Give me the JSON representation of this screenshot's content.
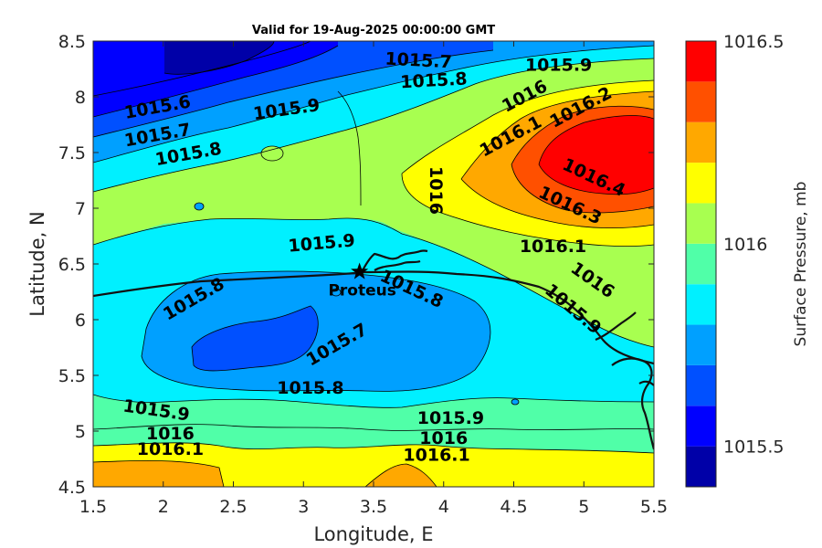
{
  "chart_data": {
    "type": "contour",
    "title": "Valid for 19-Aug-2025 00:00:00 GMT",
    "xlabel": "Longitude, E",
    "ylabel": "Latitude, N",
    "xlim": [
      1.5,
      5.5
    ],
    "ylim": [
      4.5,
      8.5
    ],
    "xticks": [
      "1.5",
      "2",
      "2.5",
      "3",
      "3.5",
      "4",
      "4.5",
      "5",
      "5.5"
    ],
    "yticks": [
      "4.5",
      "5",
      "5.5",
      "6",
      "6.5",
      "7",
      "7.5",
      "8",
      "8.5"
    ],
    "colorbar": {
      "label": "Surface Pressure, mb",
      "range": [
        1015.4,
        1016.5
      ],
      "ticks": [
        "1015.5",
        "1016",
        "1016.5"
      ],
      "levels": [
        1015.4,
        1015.5,
        1015.6,
        1015.7,
        1015.8,
        1015.9,
        1016.0,
        1016.1,
        1016.2,
        1016.3,
        1016.4,
        1016.5
      ],
      "colors": [
        "#0000a8",
        "#0000ff",
        "#0050ff",
        "#00a0ff",
        "#00f0ff",
        "#50ffa8",
        "#a8ff50",
        "#ffff00",
        "#ffa800",
        "#ff5000",
        "#ff0000",
        "#a80000"
      ]
    },
    "station": {
      "name": "Proteus",
      "lon": 3.4,
      "lat": 6.43
    },
    "contour_labels": [
      {
        "text": "1015.7",
        "lon": 3.82,
        "lat": 8.32,
        "rot": 3
      },
      {
        "text": "1015.8",
        "lon": 3.93,
        "lat": 8.14,
        "rot": -3
      },
      {
        "text": "1015.9",
        "lon": 4.82,
        "lat": 8.28,
        "rot": 0
      },
      {
        "text": "1016",
        "lon": 4.58,
        "lat": 8.0,
        "rot": -28
      },
      {
        "text": "1016.2",
        "lon": 4.98,
        "lat": 7.9,
        "rot": -28
      },
      {
        "text": "1016.1",
        "lon": 4.48,
        "lat": 7.64,
        "rot": -28
      },
      {
        "text": "1015.6",
        "lon": 1.96,
        "lat": 7.9,
        "rot": -10
      },
      {
        "text": "1015.7",
        "lon": 1.96,
        "lat": 7.65,
        "rot": -10
      },
      {
        "text": "1015.8",
        "lon": 2.18,
        "lat": 7.48,
        "rot": -10
      },
      {
        "text": "1015.9",
        "lon": 2.88,
        "lat": 7.88,
        "rot": -8
      },
      {
        "text": "1016",
        "lon": 3.94,
        "lat": 7.16,
        "rot": 90
      },
      {
        "text": "1016.4",
        "lon": 5.07,
        "lat": 7.27,
        "rot": 25
      },
      {
        "text": "1016.3",
        "lon": 4.9,
        "lat": 7.02,
        "rot": 25
      },
      {
        "text": "1016.1",
        "lon": 4.78,
        "lat": 6.65,
        "rot": 0
      },
      {
        "text": "1016",
        "lon": 5.06,
        "lat": 6.35,
        "rot": 35
      },
      {
        "text": "1015.9",
        "lon": 4.92,
        "lat": 6.09,
        "rot": 40
      },
      {
        "text": "1015.9",
        "lon": 3.13,
        "lat": 6.68,
        "rot": -5
      },
      {
        "text": "1015.8",
        "lon": 2.22,
        "lat": 6.18,
        "rot": -30
      },
      {
        "text": "1015.8",
        "lon": 3.77,
        "lat": 6.27,
        "rot": 25
      },
      {
        "text": "1015.7",
        "lon": 3.24,
        "lat": 5.77,
        "rot": -30
      },
      {
        "text": "1015.8",
        "lon": 3.05,
        "lat": 5.38,
        "rot": 0
      },
      {
        "text": "1015.9",
        "lon": 1.95,
        "lat": 5.18,
        "rot": 8
      },
      {
        "text": "1016",
        "lon": 2.05,
        "lat": 4.97,
        "rot": 0
      },
      {
        "text": "1016.1",
        "lon": 2.05,
        "lat": 4.83,
        "rot": 0
      },
      {
        "text": "1015.9",
        "lon": 4.05,
        "lat": 5.11,
        "rot": 0
      },
      {
        "text": "1016",
        "lon": 4.0,
        "lat": 4.93,
        "rot": 0
      },
      {
        "text": "1016.1",
        "lon": 3.95,
        "lat": 4.78,
        "rot": 0
      }
    ]
  }
}
